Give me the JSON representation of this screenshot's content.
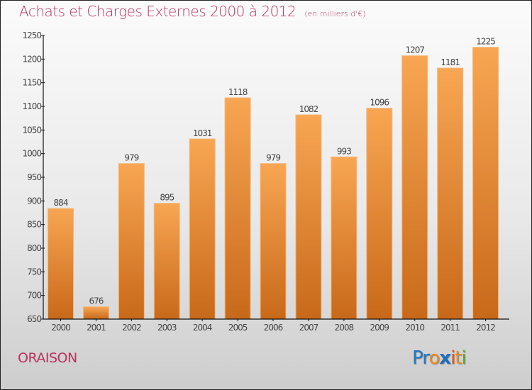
{
  "chart_data": {
    "type": "bar",
    "title": "Achats et Charges Externes 2000 à 2012",
    "subtitle": "(en milliers d'€)",
    "xlabel": "",
    "ylabel": "",
    "categories": [
      "2000",
      "2001",
      "2002",
      "2003",
      "2004",
      "2005",
      "2006",
      "2007",
      "2008",
      "2009",
      "2010",
      "2011",
      "2012"
    ],
    "values": [
      884,
      676,
      979,
      895,
      1031,
      1118,
      979,
      1082,
      993,
      1096,
      1207,
      1181,
      1225
    ],
    "ylim": [
      650,
      1250
    ],
    "yticks": [
      650,
      700,
      750,
      800,
      850,
      900,
      950,
      1000,
      1050,
      1100,
      1150,
      1200,
      1250
    ],
    "grid": false,
    "legend": "none",
    "bar_color_top": "#f8a653",
    "bar_color_bottom": "#c8691a"
  },
  "footer": {
    "city": "ORAISON",
    "logo_letters": [
      {
        "ch": "P",
        "color": "#1e78c8"
      },
      {
        "ch": "r",
        "color": "#1e78c8"
      },
      {
        "ch": "o",
        "color": "#f08a1e"
      },
      {
        "ch": "x",
        "color": "#1e6fbf"
      },
      {
        "ch": "i",
        "color": "#e8501e"
      },
      {
        "ch": "t",
        "color": "#f08a1e"
      },
      {
        "ch": "i",
        "color": "#5aaa2a"
      }
    ]
  },
  "colors": {
    "title": "#b8345e"
  }
}
